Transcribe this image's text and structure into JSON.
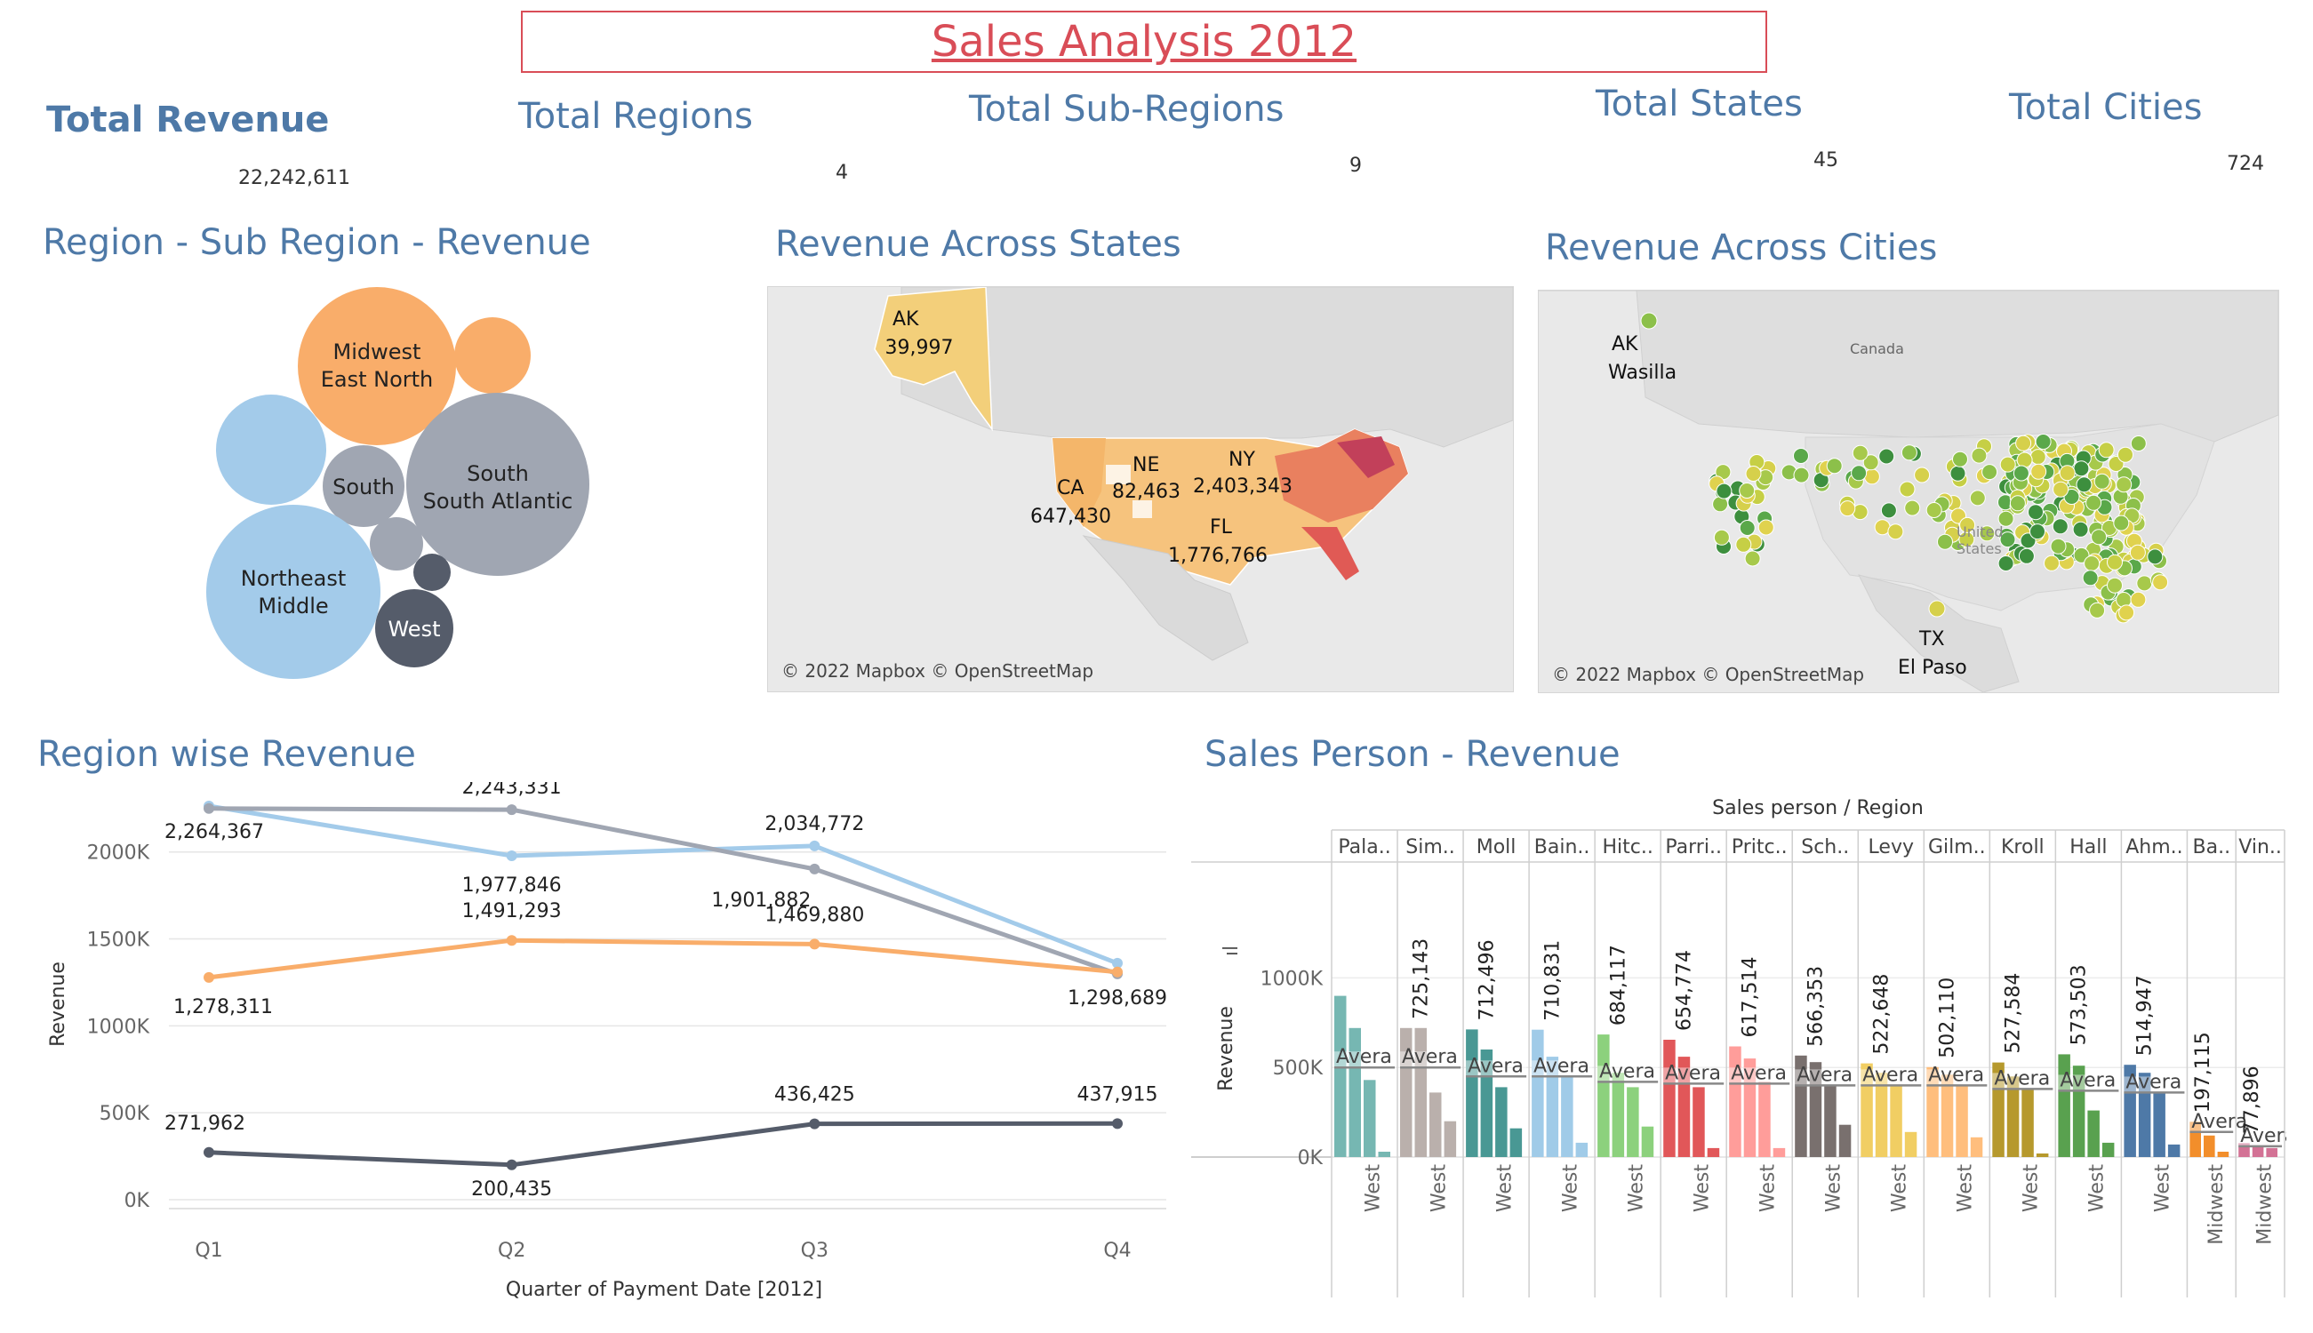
{
  "page": {
    "title": "Sales Analysis 2012"
  },
  "kpis": [
    {
      "label": "Total Revenue",
      "value": "22,242,611"
    },
    {
      "label": "Total Regions",
      "value": "4"
    },
    {
      "label": "Total Sub-Regions",
      "value": "9"
    },
    {
      "label": "Total States",
      "value": "45"
    },
    {
      "label": "Total Cities",
      "value": "724"
    }
  ],
  "sections": {
    "bubbles": "Region - Sub Region - Revenue",
    "states": "Revenue Across States",
    "cities": "Revenue Across Cities",
    "region_line": "Region wise Revenue",
    "sales_person": "Sales Person - Revenue"
  },
  "colors": {
    "accent": "#4e79a7",
    "title_red": "#d94d57",
    "midwest": "#f9ad6a",
    "northeast": "#a3cbea",
    "south": "#a0a6b2",
    "west": "#555c6a"
  },
  "maps": {
    "attribution": "© 2022 Mapbox © OpenStreetMap",
    "canada": "Canada",
    "us": "United States",
    "states_labels": [
      {
        "state": "AK",
        "value": "39,997"
      },
      {
        "state": "CA",
        "value": "647,430"
      },
      {
        "state": "NE",
        "value": "82,463"
      },
      {
        "state": "NY",
        "value": "2,403,343"
      },
      {
        "state": "FL",
        "value": "1,776,766"
      }
    ],
    "cities_labels": [
      {
        "state": "AK",
        "city": "Wasilla"
      },
      {
        "state": "TX",
        "city": "El Paso"
      }
    ]
  },
  "chart_data": [
    {
      "type": "bubble",
      "title": "Region - Sub Region - Revenue",
      "bubbles": [
        {
          "label": "Midwest\nEast North",
          "region": "Midwest"
        },
        {
          "label": "",
          "region": "Midwest"
        },
        {
          "label": "",
          "region": "Northeast"
        },
        {
          "label": "South",
          "region": "South"
        },
        {
          "label": "South\nSouth Atlantic",
          "region": "South"
        },
        {
          "label": "Northeast\nMiddle",
          "region": "Northeast"
        },
        {
          "label": "",
          "region": "South"
        },
        {
          "label": "",
          "region": "West"
        },
        {
          "label": "West",
          "region": "West"
        }
      ]
    },
    {
      "type": "line",
      "title": "Region wise Revenue",
      "xlabel": "Quarter of Payment Date [2012]",
      "ylabel": "Revenue",
      "categories": [
        "Q1",
        "Q2",
        "Q3",
        "Q4"
      ],
      "ylim": [
        0,
        2300000
      ],
      "yticks": [
        0,
        500000,
        1000000,
        1500000,
        2000000
      ],
      "ytick_labels": [
        "0K",
        "500K",
        "1000K",
        "1500K",
        "2000K"
      ],
      "series": [
        {
          "color": "#a3cbea",
          "values": [
            2264367,
            1977846,
            2034772,
            1360000
          ],
          "labels": [
            "2,264,367",
            "1,977,846",
            "2,034,772",
            ""
          ]
        },
        {
          "color": "#a0a6b2",
          "values": [
            2250000,
            2243331,
            1901882,
            1298689
          ],
          "labels": [
            "",
            "2,243,331",
            "1,901,882",
            "1,298,689"
          ]
        },
        {
          "color": "#f9ad6a",
          "values": [
            1278311,
            1491293,
            1469880,
            1310000
          ],
          "labels": [
            "1,278,311",
            "1,491,293",
            "1,469,880",
            ""
          ]
        },
        {
          "color": "#555c6a",
          "values": [
            271962,
            200435,
            436425,
            437915
          ],
          "labels": [
            "271,962",
            "200,435",
            "436,425",
            "437,915"
          ]
        }
      ]
    },
    {
      "type": "bar",
      "title": "Sales Person - Revenue",
      "header": "Sales person / Region",
      "ylabel": "Revenue",
      "ylim": [
        0,
        1250000
      ],
      "yticks": [
        0,
        500000,
        1000000
      ],
      "ytick_labels": [
        "0K",
        "500K",
        "1000K"
      ],
      "average_label": "Avera",
      "groups": [
        {
          "name": "Pala..",
          "region": "West",
          "color": "#76b7b2",
          "total": "",
          "avg": 500000,
          "values": [
            900000,
            720000,
            430000,
            30000
          ]
        },
        {
          "name": "Sim..",
          "region": "West",
          "color": "#bab0ac",
          "total": "725,143",
          "avg": 500000,
          "values": [
            720000,
            720000,
            360000,
            200000
          ]
        },
        {
          "name": "Moll",
          "region": "West",
          "color": "#499894",
          "total": "712,496",
          "avg": 450000,
          "values": [
            712496,
            600000,
            390000,
            160000
          ]
        },
        {
          "name": "Bain..",
          "region": "West",
          "color": "#a0cbe8",
          "total": "710,831",
          "avg": 450000,
          "values": [
            710831,
            560000,
            450000,
            80000
          ]
        },
        {
          "name": "Hitc..",
          "region": "West",
          "color": "#8cd17d",
          "total": "684,117",
          "avg": 420000,
          "values": [
            684117,
            470000,
            390000,
            170000
          ]
        },
        {
          "name": "Parri..",
          "region": "West",
          "color": "#e15759",
          "total": "654,774",
          "avg": 410000,
          "values": [
            654774,
            560000,
            390000,
            50000
          ]
        },
        {
          "name": "Pritc..",
          "region": "West",
          "color": "#ff9d9a",
          "total": "617,514",
          "avg": 410000,
          "values": [
            617514,
            550000,
            420000,
            50000
          ]
        },
        {
          "name": "Sch..",
          "region": "West",
          "color": "#79706e",
          "total": "566,353",
          "avg": 400000,
          "values": [
            566353,
            530000,
            400000,
            180000
          ]
        },
        {
          "name": "Levy",
          "region": "West",
          "color": "#f1ce63",
          "total": "522,648",
          "avg": 400000,
          "values": [
            522648,
            470000,
            400000,
            140000
          ]
        },
        {
          "name": "Gilm..",
          "region": "West",
          "color": "#ffbe7d",
          "total": "502,110",
          "avg": 400000,
          "values": [
            502110,
            460000,
            400000,
            110000
          ]
        },
        {
          "name": "Kroll",
          "region": "West",
          "color": "#b6992d",
          "total": "527,584",
          "avg": 380000,
          "values": [
            527584,
            450000,
            380000,
            20000
          ]
        },
        {
          "name": "Hall",
          "region": "West",
          "color": "#59a14f",
          "total": "573,503",
          "avg": 370000,
          "values": [
            573503,
            510000,
            260000,
            80000
          ]
        },
        {
          "name": "Ahm..",
          "region": "West",
          "color": "#4e79a7",
          "total": "514,947",
          "avg": 360000,
          "values": [
            514947,
            470000,
            360000,
            70000
          ]
        },
        {
          "name": "Ba..",
          "region": "Midwest",
          "color": "#f28e2b",
          "total": "197,115",
          "avg": 140000,
          "values": [
            197115,
            120000,
            30000
          ]
        },
        {
          "name": "Vin..",
          "region": "Midwest",
          "color": "#d37295",
          "total": "77,896",
          "avg": 60000,
          "values": [
            77896,
            60000,
            50000
          ]
        }
      ]
    }
  ]
}
